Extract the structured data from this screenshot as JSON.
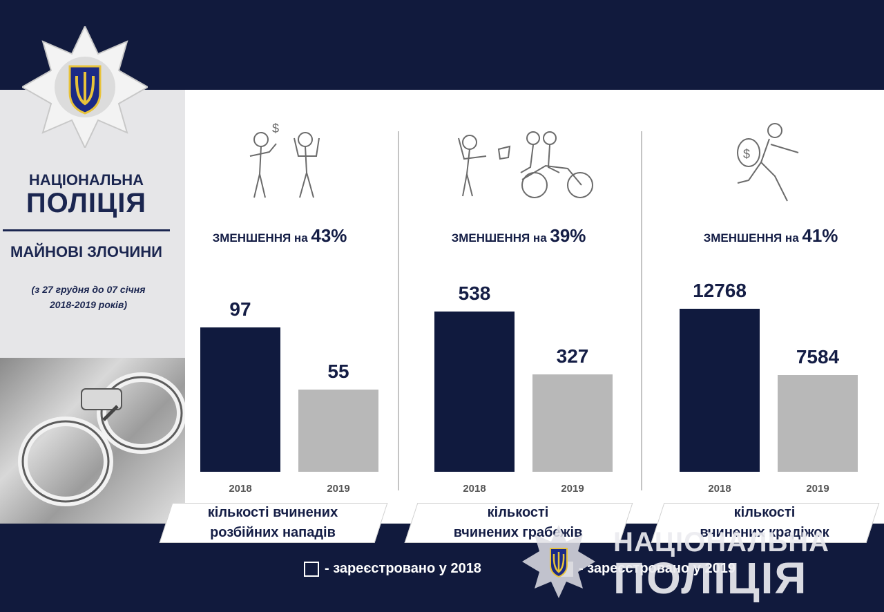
{
  "brand": {
    "line1": "НАЦІОНАЛЬНА",
    "line2": "ПОЛІЦІЯ"
  },
  "subject": "МАЙНОВІ ЗЛОЧИНИ",
  "period": {
    "line1": "(з 27 грудня до 07 січня",
    "line2": "2018-2019 років)"
  },
  "colors": {
    "navy": "#111a3d",
    "bar_2018": "#101a3e",
    "bar_2019": "#b8b8b8"
  },
  "panels": [
    {
      "icon": "robbery-assault-icon",
      "headline_text": "ЗМЕНШЕННЯ на ",
      "headline_pct": "43%",
      "value_2018": "97",
      "value_2019": "55",
      "year_2018": "2018",
      "year_2019": "2019",
      "caption_line1": "кількості вчинених",
      "caption_line2": "розбійних нападів"
    },
    {
      "icon": "bag-snatching-icon",
      "headline_text": "ЗМЕНШЕННЯ на ",
      "headline_pct": "39%",
      "value_2018": "538",
      "value_2019": "327",
      "year_2018": "2018",
      "year_2019": "2019",
      "caption_line1": "кількості",
      "caption_line2": "вчинених грабежів"
    },
    {
      "icon": "thief-running-icon",
      "headline_text": "ЗМЕНШЕННЯ на ",
      "headline_pct": "41%",
      "value_2018": "12768",
      "value_2019": "7584",
      "year_2018": "2018",
      "year_2019": "2019",
      "caption_line1": "кількості",
      "caption_line2": "вчинених крадіжок"
    }
  ],
  "legend": {
    "item_2018": "- зареєстровано у 2018",
    "item_2019": "- зареєстровано у 2019"
  },
  "watermark": {
    "line1": "НАЦІОНАЛЬНА",
    "line2": "ПОЛІЦІЯ"
  },
  "chart_data": [
    {
      "type": "bar",
      "categories": [
        "2018",
        "2019"
      ],
      "values": [
        97,
        55
      ]
    },
    {
      "type": "bar",
      "categories": [
        "2018",
        "2019"
      ],
      "values": [
        538,
        327
      ]
    },
    {
      "type": "bar",
      "categories": [
        "2018",
        "2019"
      ],
      "values": [
        12768,
        7584
      ]
    }
  ]
}
